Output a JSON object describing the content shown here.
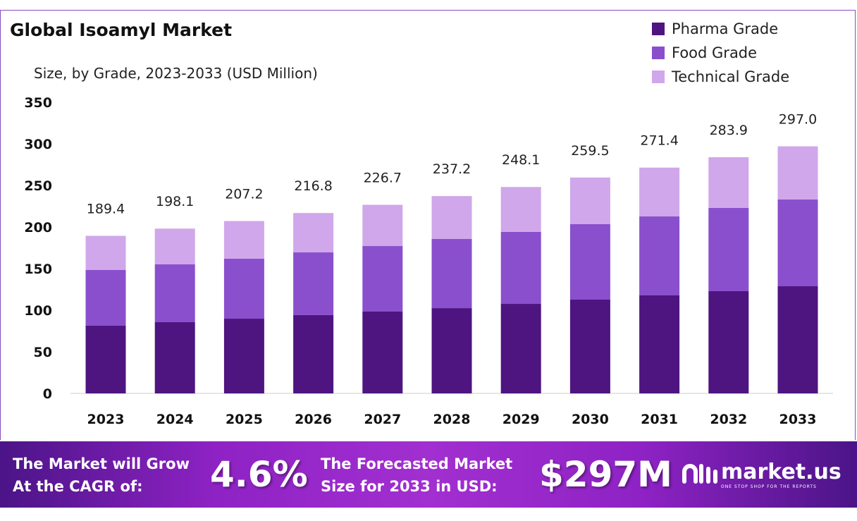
{
  "chart_data": {
    "type": "bar",
    "stacked": true,
    "title": "Global Isoamyl Market",
    "subtitle": "Size, by Grade, 2023-2033 (USD Million)",
    "categories": [
      "2023",
      "2024",
      "2025",
      "2026",
      "2027",
      "2028",
      "2029",
      "2030",
      "2031",
      "2032",
      "2033"
    ],
    "series": [
      {
        "name": "Pharma Grade",
        "color": "#4e1480",
        "values": [
          81.4,
          85.6,
          89.8,
          94.1,
          98.3,
          102.5,
          107.6,
          112.7,
          117.8,
          122.9,
          128.8
        ]
      },
      {
        "name": "Food Grade",
        "color": "#8a4fcc",
        "values": [
          66.9,
          69.5,
          72.1,
          75.4,
          78.8,
          83.1,
          86.5,
          90.7,
          94.9,
          100.0,
          104.3
        ]
      },
      {
        "name": "Technical Grade",
        "color": "#d0a7ea",
        "values": [
          41.1,
          43.0,
          45.3,
          47.3,
          49.6,
          51.6,
          54.0,
          56.1,
          58.7,
          61.0,
          63.9
        ]
      }
    ],
    "totals": [
      "189.4",
      "198.1",
      "207.2",
      "216.8",
      "226.7",
      "237.2",
      "248.1",
      "259.5",
      "271.4",
      "283.9",
      "297.0"
    ],
    "ylim": [
      0,
      350
    ],
    "yticks": [
      0,
      50,
      100,
      150,
      200,
      250,
      300,
      350
    ],
    "grid": false,
    "legend": "top-right"
  },
  "footer": {
    "cagr_label_1": "The Market will Grow",
    "cagr_label_2": "At the CAGR of:",
    "cagr_value": "4.6%",
    "forecast_label_1": "The Forecasted Market",
    "forecast_label_2": "Size for 2033 in USD:",
    "forecast_value": "$297M",
    "logo_name": "market.us",
    "logo_tagline": "ONE STOP SHOP FOR THE REPORTS"
  }
}
